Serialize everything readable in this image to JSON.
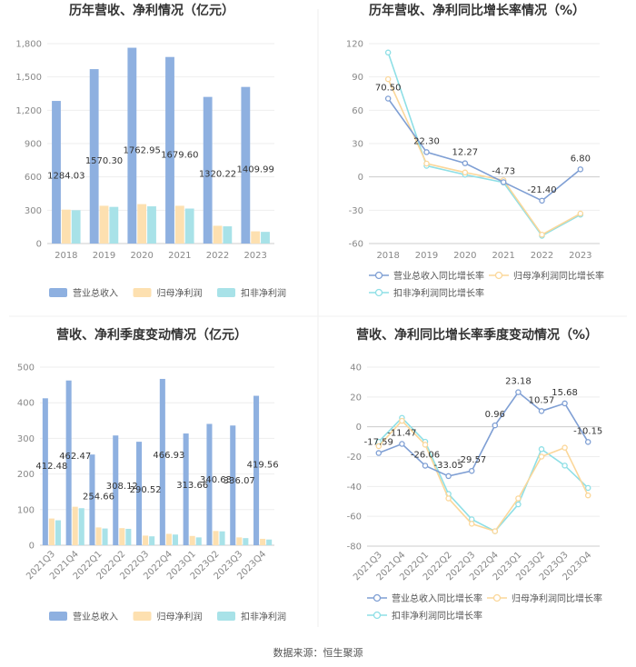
{
  "source": "数据来源：恒生聚源",
  "colors": {
    "revenue": "#8eb0e0",
    "parent_profit": "#fde0b0",
    "deducted_profit": "#a8e2e8",
    "line_revenue": "#7f9fd4",
    "line_parent": "#fbd79a",
    "line_deducted": "#8edfe6"
  },
  "chart_data": [
    {
      "type": "bar",
      "title": "历年营收、净利情况（亿元）",
      "categories": [
        "2018",
        "2019",
        "2020",
        "2021",
        "2022",
        "2023"
      ],
      "ylim": [
        0,
        1800
      ],
      "yticks": [
        "0",
        "300",
        "600",
        "900",
        "1,200",
        "1,500",
        "1,800"
      ],
      "ytick_values": [
        0,
        300,
        600,
        900,
        1200,
        1500,
        1800
      ],
      "series": [
        {
          "name": "营业总收入",
          "values": [
            1284.03,
            1570.3,
            1762.95,
            1679.6,
            1320.22,
            1409.99
          ],
          "labels": [
            "1284.03",
            "1570.30",
            "1762.95",
            "1679.60",
            "1320.22",
            "1409.99"
          ]
        },
        {
          "name": "归母净利润",
          "values": [
            305,
            340,
            355,
            340,
            160,
            110
          ]
        },
        {
          "name": "扣非净利润",
          "values": [
            300,
            330,
            335,
            315,
            155,
            105
          ]
        }
      ]
    },
    {
      "type": "line",
      "title": "历年营收、净利同比增长率情况（%）",
      "categories": [
        "2018",
        "2019",
        "2020",
        "2021",
        "2022",
        "2023"
      ],
      "ylim": [
        -60,
        120
      ],
      "yticks": [
        "-60",
        "-30",
        "0",
        "30",
        "60",
        "90",
        "120"
      ],
      "ytick_values": [
        -60,
        -30,
        0,
        30,
        60,
        90,
        120
      ],
      "series": [
        {
          "name": "营业总收入同比增长率",
          "values": [
            70.5,
            22.3,
            12.27,
            -4.73,
            -21.4,
            6.8
          ],
          "labels": [
            "70.50",
            "22.30",
            "12.27",
            "-4.73",
            "-21.40",
            "6.80"
          ]
        },
        {
          "name": "归母净利润同比增长率",
          "values": [
            88,
            12,
            4,
            -3,
            -52,
            -33
          ]
        },
        {
          "name": "扣非净利润同比增长率",
          "values": [
            112,
            10,
            2,
            -5,
            -53,
            -34
          ]
        }
      ]
    },
    {
      "type": "bar",
      "title": "营收、净利季度变动情况（亿元）",
      "categories": [
        "2021Q3",
        "2021Q4",
        "2022Q1",
        "2022Q2",
        "2022Q3",
        "2022Q4",
        "2023Q1",
        "2023Q2",
        "2023Q3",
        "2023Q4"
      ],
      "ylim": [
        0,
        500
      ],
      "yticks": [
        "0",
        "100",
        "200",
        "300",
        "400",
        "500"
      ],
      "ytick_values": [
        0,
        100,
        200,
        300,
        400,
        500
      ],
      "series": [
        {
          "name": "营业总收入",
          "values": [
            412.48,
            462.47,
            254.66,
            308.12,
            290.52,
            466.93,
            313.66,
            340.63,
            336.07,
            419.56
          ],
          "labels": [
            "412.48",
            "462.47",
            "254.66",
            "308.12",
            "290.52",
            "466.93",
            "313.66",
            "340.63",
            "336.07",
            "419.56"
          ]
        },
        {
          "name": "归母净利润",
          "values": [
            75,
            108,
            50,
            48,
            27,
            32,
            26,
            40,
            22,
            18
          ]
        },
        {
          "name": "扣非净利润",
          "values": [
            70,
            104,
            47,
            46,
            25,
            30,
            22,
            39,
            20,
            16
          ]
        }
      ]
    },
    {
      "type": "line",
      "title": "营收、净利同比增长率季度变动情况（%）",
      "categories": [
        "2021Q3",
        "2021Q4",
        "2022Q1",
        "2022Q2",
        "2022Q3",
        "2022Q4",
        "2023Q1",
        "2023Q2",
        "2023Q3",
        "2023Q4"
      ],
      "ylim": [
        -80,
        40
      ],
      "yticks": [
        "-80",
        "-60",
        "-40",
        "-20",
        "0",
        "20",
        "40"
      ],
      "ytick_values": [
        -80,
        -60,
        -40,
        -20,
        0,
        20,
        40
      ],
      "series": [
        {
          "name": "营业总收入同比增长率",
          "values": [
            -17.59,
            -11.47,
            -26.06,
            -33.05,
            -29.57,
            0.96,
            23.18,
            10.57,
            15.68,
            -10.15
          ],
          "labels": [
            "-17.59",
            "-11.47",
            "-26.06",
            "-33.05",
            "-29.57",
            "0.96",
            "23.18",
            "10.57",
            "15.68",
            "-10.15"
          ]
        },
        {
          "name": "归母净利润同比增长率",
          "values": [
            -13,
            4,
            -12,
            -48,
            -65,
            -70,
            -48,
            -20,
            -14,
            -46
          ]
        },
        {
          "name": "扣非净利润同比增长率",
          "values": [
            -10,
            6,
            -10,
            -45,
            -62,
            -70,
            -52,
            -15,
            -26,
            -41
          ]
        }
      ]
    }
  ]
}
